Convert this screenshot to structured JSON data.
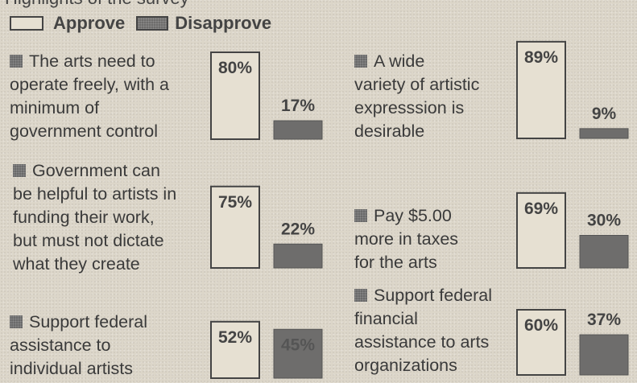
{
  "header_text": "Highlights of the survey",
  "legend": {
    "approve": "Approve",
    "disapprove": "Disapprove"
  },
  "colors": {
    "approve": "#e6e0d2",
    "disapprove": "#6e6d6c",
    "outline": "#444444"
  },
  "chart_data": {
    "type": "bar",
    "title": "",
    "series_names": [
      "Approve",
      "Disapprove"
    ],
    "ylim": [
      0,
      100
    ],
    "groups": [
      {
        "label_lines": [
          "The arts need to",
          "operate freely, with a",
          "minimum of",
          "government control"
        ],
        "approve": 80,
        "disapprove": 17,
        "approve_label": "80%",
        "disapprove_label": "17%"
      },
      {
        "label_lines": [
          "Government can",
          "be helpful to artists in",
          "funding their work,",
          "but must not dictate",
          "what they create"
        ],
        "approve": 75,
        "disapprove": 22,
        "approve_label": "75%",
        "disapprove_label": "22%"
      },
      {
        "label_lines": [
          "Support federal",
          "assistance to",
          "individual artists"
        ],
        "approve": 52,
        "disapprove": 45,
        "approve_label": "52%",
        "disapprove_label": "45%"
      },
      {
        "label_lines": [
          "A wide",
          "variety of artistic",
          "expresssion is",
          "desirable"
        ],
        "approve": 89,
        "disapprove": 9,
        "approve_label": "89%",
        "disapprove_label": "9%"
      },
      {
        "label_lines": [
          "Pay $5.00",
          "more in taxes",
          "for the arts"
        ],
        "approve": 69,
        "disapprove": 30,
        "approve_label": "69%",
        "disapprove_label": "30%"
      },
      {
        "label_lines": [
          "Support federal",
          "financial",
          "assistance to arts",
          "organizations"
        ],
        "approve": 60,
        "disapprove": 37,
        "approve_label": "60%",
        "disapprove_label": "37%"
      }
    ]
  }
}
